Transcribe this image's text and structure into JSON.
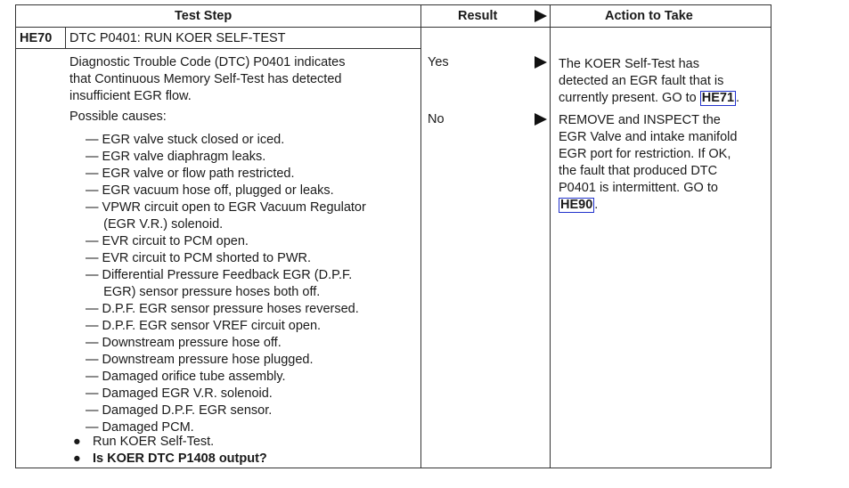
{
  "header": {
    "test_step": "Test Step",
    "result": "Result",
    "action": "Action to Take"
  },
  "step": {
    "id": "HE70",
    "title": "DTC P0401: RUN KOER SELF-TEST",
    "description": [
      "Diagnostic Trouble Code (DTC) P0401 indicates",
      "that Continuous Memory Self-Test has detected",
      "insufficient EGR flow."
    ],
    "causes_label": "Possible causes:",
    "causes": [
      "— EGR valve stuck closed or iced.",
      "— EGR valve diaphragm leaks.",
      "— EGR valve or flow path restricted.",
      "— EGR vacuum hose off, plugged or leaks.",
      "— VPWR circuit open to EGR Vacuum Regulator",
      "     (EGR V.R.) solenoid.",
      "— EVR circuit to PCM open.",
      "— EVR circuit to PCM shorted to PWR.",
      "— Differential Pressure Feedback EGR (D.P.F.",
      "     EGR) sensor pressure hoses both off.",
      "— D.P.F. EGR sensor pressure hoses reversed.",
      "— D.P.F. EGR sensor VREF circuit open.",
      "— Downstream pressure hose off.",
      "— Downstream pressure hose plugged.",
      "— Damaged orifice tube assembly.",
      "— Damaged EGR V.R. solenoid.",
      "— Damaged D.P.F. EGR sensor.",
      "— Damaged PCM."
    ],
    "bullets": [
      "Run KOER Self-Test.",
      "Is KOER DTC P1408 output?"
    ]
  },
  "results": [
    {
      "label": "Yes",
      "action_lines": [
        "The KOER Self-Test has",
        "detected an EGR fault that is",
        "currently present. GO to "
      ],
      "link": "HE71",
      "suffix": "."
    },
    {
      "label": "No",
      "action_lines": [
        "REMOVE and INSPECT the",
        "EGR Valve and intake manifold",
        "EGR port for restriction. If OK,",
        "the fault that produced DTC",
        "P0401 is intermittent. GO to",
        ""
      ],
      "link": "HE90",
      "suffix": "."
    }
  ],
  "colors": {
    "link_border": "#2233cc"
  }
}
